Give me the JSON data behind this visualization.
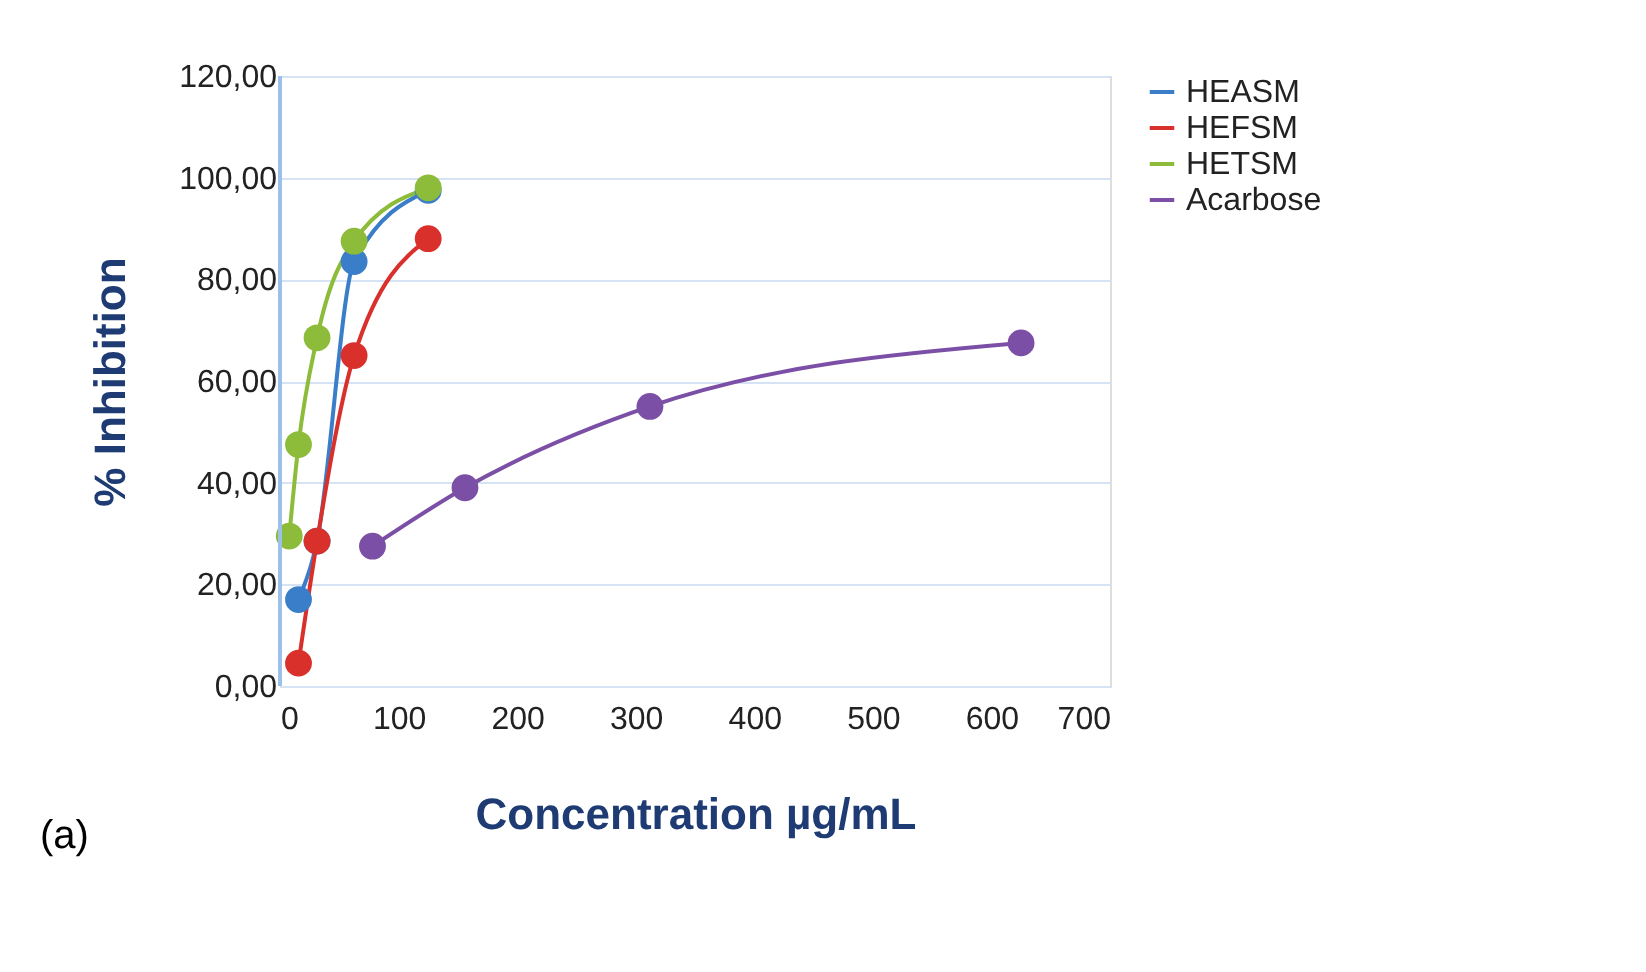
{
  "chart_data": {
    "type": "line",
    "xlabel": "Concentration µg/mL",
    "ylabel": "% Inhibition",
    "annotations": [
      "(a)"
    ],
    "xlim": [
      0,
      700
    ],
    "xticks": [
      0,
      100,
      200,
      300,
      400,
      500,
      600,
      700
    ],
    "ylim": [
      0,
      120
    ],
    "yticks": [
      {
        "value": 0,
        "label": "0,00"
      },
      {
        "value": 20,
        "label": "20,00"
      },
      {
        "value": 40,
        "label": "40,00"
      },
      {
        "value": 60,
        "label": "60,00"
      },
      {
        "value": 80,
        "label": "80,00"
      },
      {
        "value": 100,
        "label": "100,00"
      },
      {
        "value": 120,
        "label": "120,00"
      }
    ],
    "grid": "y",
    "legend": "right",
    "marker": "circle",
    "line_style": "solid",
    "series": [
      {
        "name": "HEASM",
        "color": "#3a7dc9",
        "x": [
          15.6,
          31.25,
          62.5,
          125
        ],
        "values": [
          17,
          28.5,
          83.5,
          97.5
        ]
      },
      {
        "name": "HEFSM",
        "color": "#d9302c",
        "x": [
          15.6,
          31.25,
          62.5,
          125
        ],
        "values": [
          4.5,
          28.5,
          65,
          88
        ]
      },
      {
        "name": "HETSM",
        "color": "#8dbb3a",
        "x": [
          7.8,
          15.6,
          31.25,
          62.5,
          125
        ],
        "values": [
          29.5,
          47.5,
          68.5,
          87.5,
          98
        ]
      },
      {
        "name": "Acarbose",
        "color": "#7b4fa6",
        "x": [
          78,
          156,
          312,
          625
        ],
        "values": [
          27.5,
          39,
          55,
          67.5
        ]
      }
    ]
  }
}
